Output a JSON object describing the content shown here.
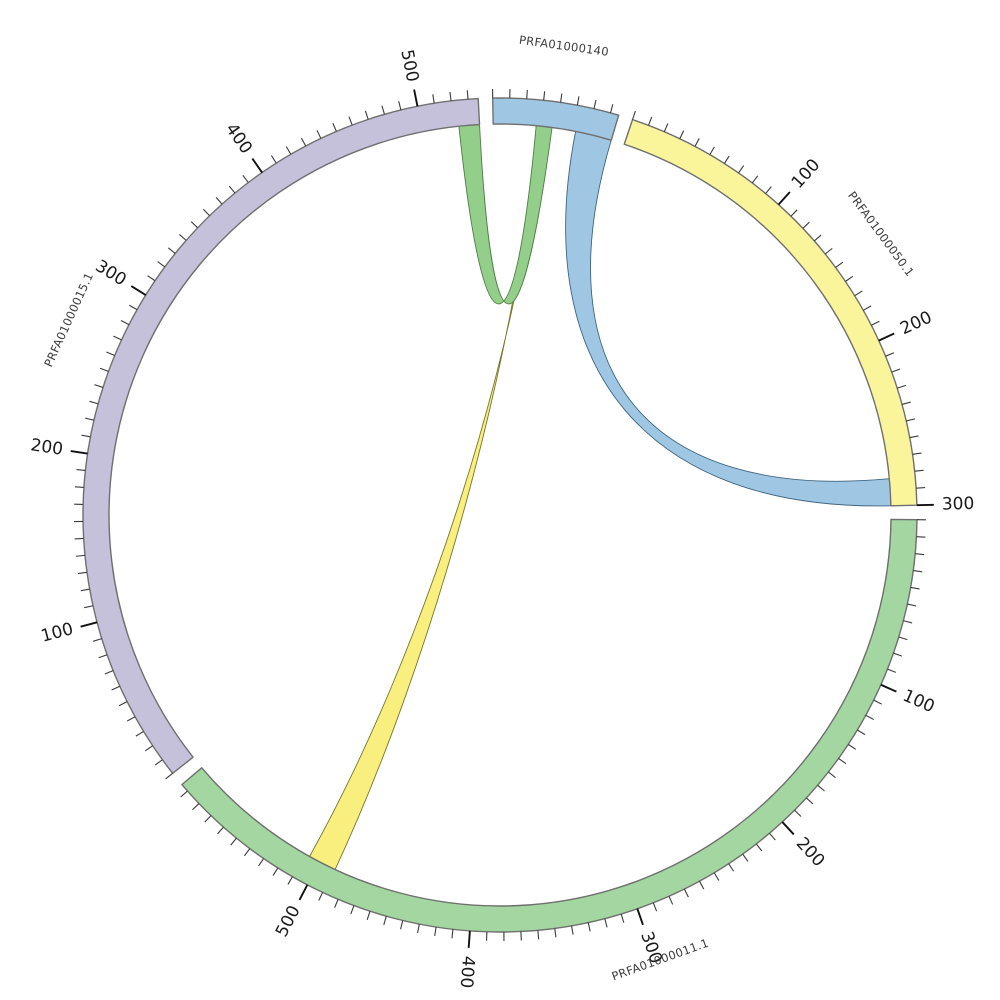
{
  "figure": {
    "background": "#ffffff",
    "description": "Circular (Circos-style) chord diagram comparing four sequence contigs with ribbon links"
  },
  "chart_data": {
    "type": "chord",
    "title": "",
    "legend": "none",
    "grid": false,
    "layout": {
      "direction": "clockwise",
      "start_angle_deg": -1,
      "gap_between_segments_deg": 2,
      "minor_tick_interval": 10,
      "major_tick_interval": 100
    },
    "style": {
      "arc_outline": "#6f6f6f",
      "minor_tick_color": "#3a3a3a",
      "major_tick_color": "#111111",
      "tick_label_color": "#1a1a1a",
      "name_label_color": "#3c3c3c"
    },
    "segments": [
      {
        "name": "PRFA01000140",
        "length": 75,
        "color": "#9fc7e3",
        "major_tick_labels": []
      },
      {
        "name": "PRFA01000050.1",
        "length": 300,
        "color": "#faf49a",
        "major_tick_labels": [
          100,
          200,
          300
        ]
      },
      {
        "name": "PRFA01000011.1",
        "length": 595,
        "color": "#a3d6a0",
        "major_tick_labels": [
          100,
          200,
          300,
          400,
          500
        ]
      },
      {
        "name": "PRFA01000015.1",
        "length": 536,
        "color": "#c5c1db",
        "major_tick_labels": [
          100,
          200,
          300,
          400,
          500
        ]
      }
    ],
    "links": [
      {
        "source": {
          "segment": "PRFA01000140",
          "start": 52,
          "end": 75
        },
        "target": {
          "segment": "PRFA01000050.1",
          "start": 283,
          "end": 300
        },
        "color": "#9fc7e3",
        "edge_color": "#3d6480",
        "twist": false,
        "pull": 0.62
      },
      {
        "source": {
          "segment": "PRFA01000140",
          "start": 28.5,
          "end": 31.5
        },
        "target": {
          "segment": "PRFA01000011.1",
          "start": 489,
          "end": 507
        },
        "color": "#f8ef7e",
        "edge_color": "#77762f",
        "twist": true,
        "pull": 0.6
      },
      {
        "source": {
          "segment": "PRFA01000015.1",
          "start": 523,
          "end": 536
        },
        "target": {
          "segment": "PRFA01000140",
          "start": 27,
          "end": 37
        },
        "color": "#94ce8b",
        "edge_color": "#4e7d45",
        "twist": true,
        "pull": 0.61
      }
    ]
  }
}
